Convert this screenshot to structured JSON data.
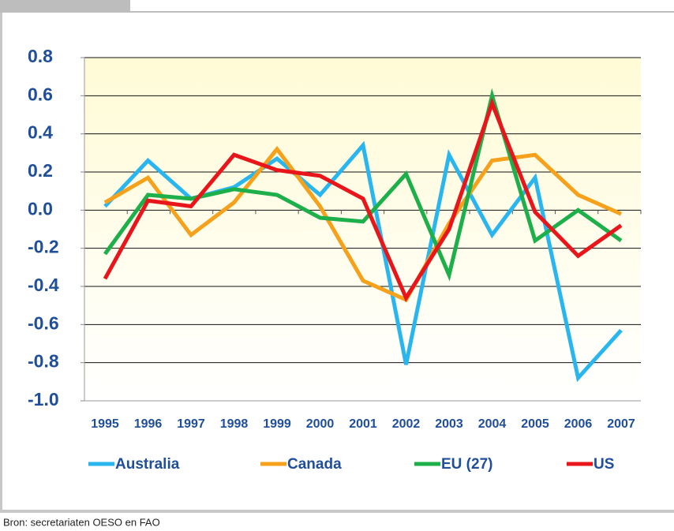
{
  "chart_data": {
    "type": "line",
    "categories": [
      "1995",
      "1996",
      "1997",
      "1998",
      "1999",
      "2000",
      "2001",
      "2002",
      "2003",
      "2004",
      "2005",
      "2006",
      "2007"
    ],
    "series": [
      {
        "name": "Australia",
        "color": "#29b6ef",
        "values": [
          0.02,
          0.26,
          0.06,
          0.12,
          0.27,
          0.08,
          0.34,
          -0.81,
          0.29,
          -0.13,
          0.17,
          -0.88,
          -0.63
        ]
      },
      {
        "name": "Canada",
        "color": "#f5a11c",
        "values": [
          0.04,
          0.17,
          -0.13,
          0.04,
          0.32,
          0.02,
          -0.37,
          -0.47,
          -0.07,
          0.26,
          0.29,
          0.08,
          -0.02
        ]
      },
      {
        "name": "EU (27)",
        "color": "#1db04a",
        "values": [
          -0.23,
          0.08,
          0.06,
          0.11,
          0.08,
          -0.04,
          -0.06,
          0.19,
          -0.34,
          0.6,
          -0.16,
          0.0,
          -0.16
        ]
      },
      {
        "name": "US",
        "color": "#e8161b",
        "values": [
          -0.36,
          0.05,
          0.02,
          0.29,
          0.21,
          0.18,
          0.06,
          -0.46,
          -0.1,
          0.56,
          -0.01,
          -0.24,
          -0.08
        ]
      }
    ],
    "ylim": [
      -1.0,
      0.8
    ],
    "yticks": [
      {
        "value": -1.0,
        "label": "-1.0"
      },
      -0.8,
      -0.6,
      -0.4,
      -0.2,
      {
        "value": 0,
        "label": "0.0"
      },
      0.2,
      0.4,
      0.6,
      0.8
    ],
    "grid": true,
    "legend": "bottom",
    "source": "Bron: secretariaten OESO en FAO"
  }
}
